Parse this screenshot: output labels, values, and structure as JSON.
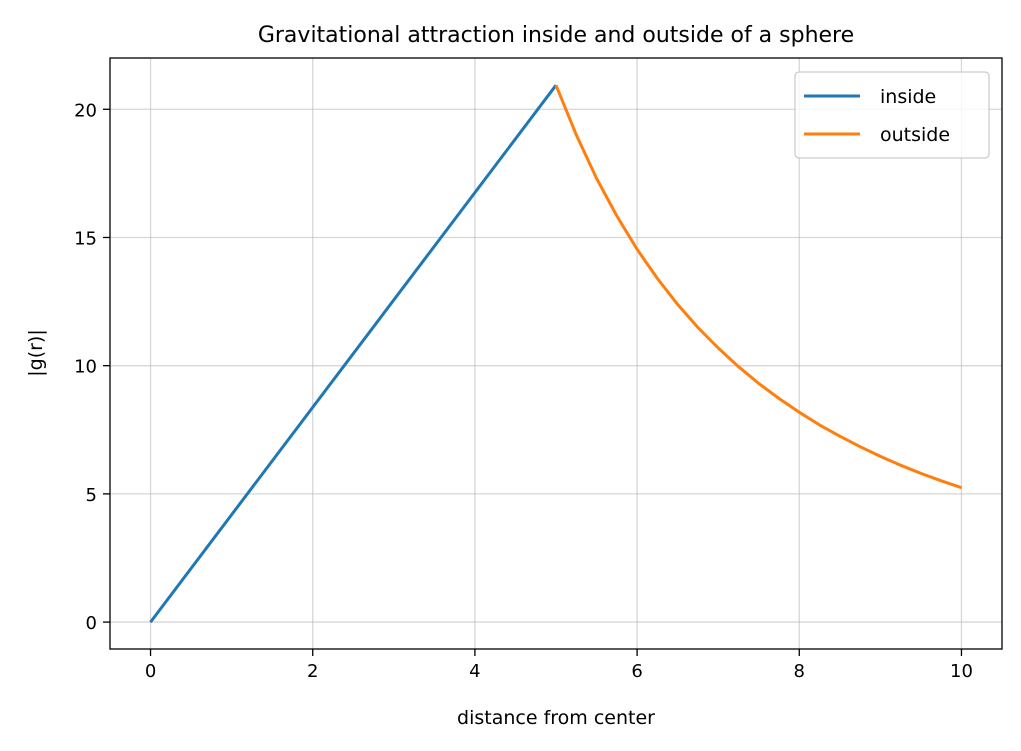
{
  "chart_data": {
    "type": "line",
    "title": "Gravitational attraction inside and outside of a sphere",
    "xlabel": "distance from center",
    "ylabel": "|g(r)|",
    "xlim": [
      -0.5,
      10.5
    ],
    "ylim": [
      -1.05,
      22.0
    ],
    "xticks": [
      0,
      2,
      4,
      6,
      8,
      10
    ],
    "yticks": [
      0,
      5,
      10,
      15,
      20
    ],
    "grid": true,
    "legend_position": "top-right",
    "series": [
      {
        "name": "inside",
        "color": "#1f77b4",
        "x": [
          0,
          5
        ],
        "y": [
          0,
          20.94
        ]
      },
      {
        "name": "outside",
        "color": "#ff7f0e",
        "x": [
          5,
          5.25,
          5.5,
          5.75,
          6,
          6.25,
          6.5,
          6.75,
          7,
          7.25,
          7.5,
          7.75,
          8,
          8.25,
          8.5,
          8.75,
          9,
          9.25,
          9.5,
          9.75,
          10
        ],
        "y": [
          20.94,
          19.0,
          17.31,
          15.84,
          14.54,
          13.4,
          12.39,
          11.49,
          10.69,
          9.96,
          9.31,
          8.72,
          8.18,
          7.69,
          7.25,
          6.84,
          6.46,
          6.12,
          5.8,
          5.51,
          5.24
        ]
      }
    ]
  }
}
